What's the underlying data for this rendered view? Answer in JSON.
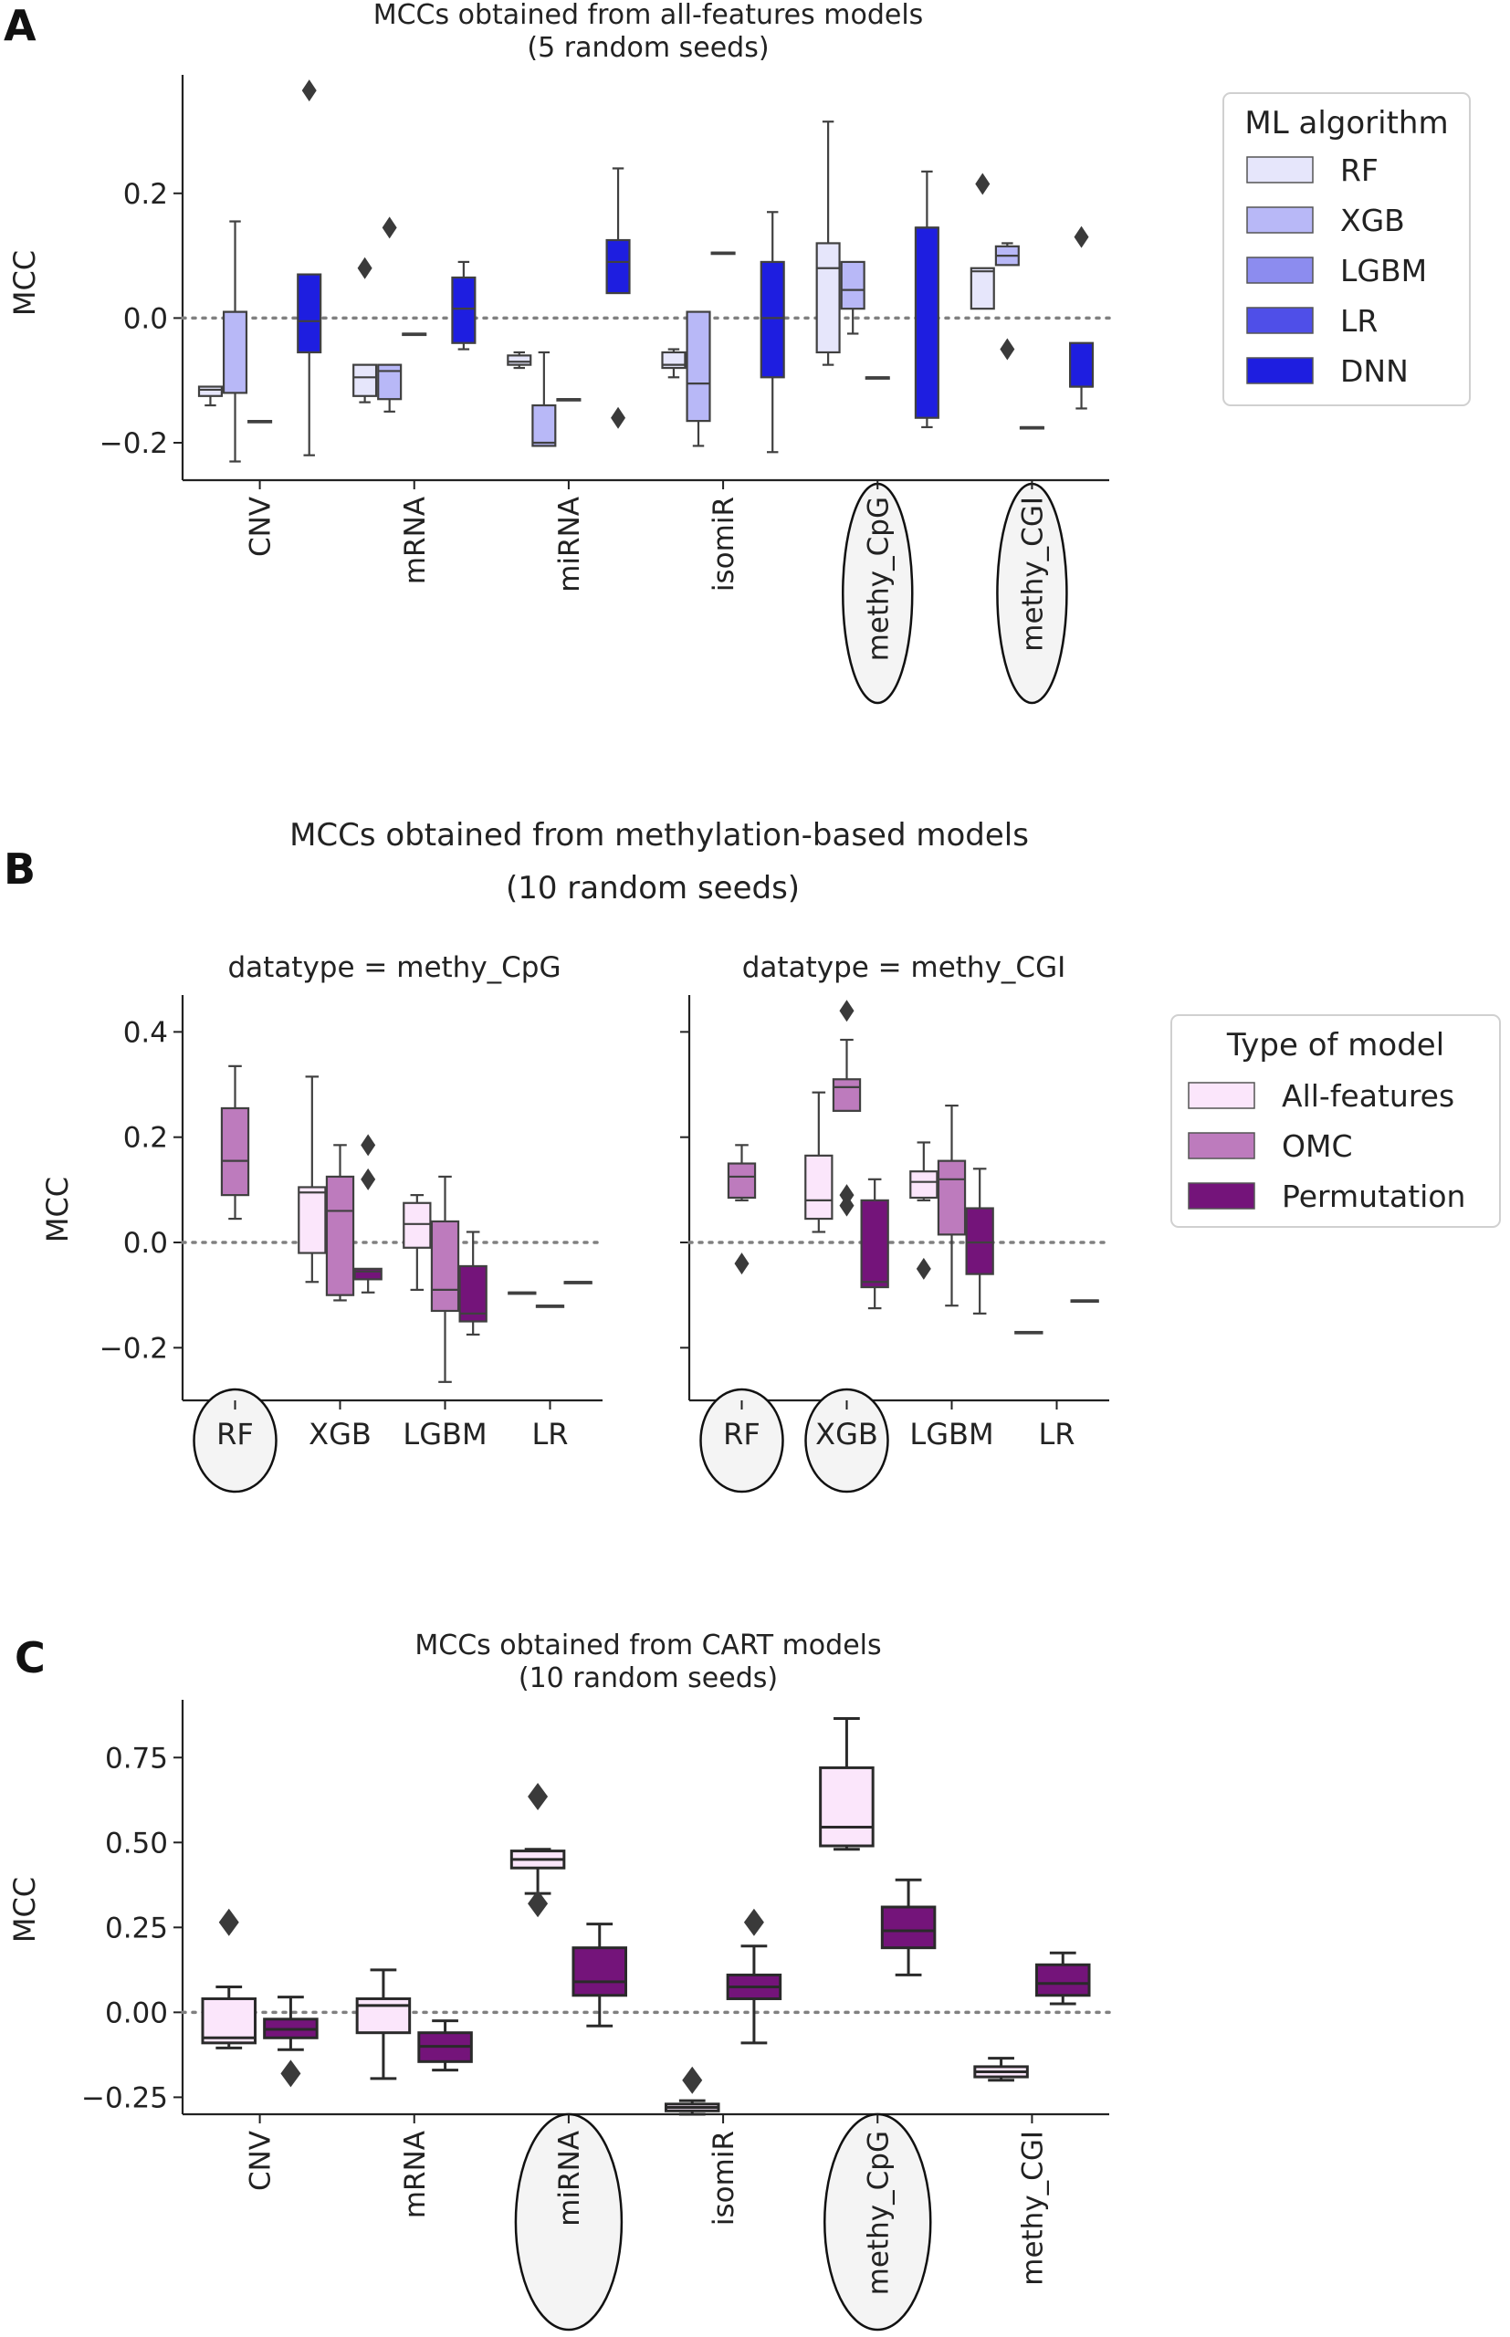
{
  "panel_labels": [
    "A",
    "B",
    "C"
  ],
  "colors": {
    "RF": "#e6e6fb",
    "XGB": "#b8b8f7",
    "LGBM": "#8c8cef",
    "LR": "#4f4fe8",
    "DNN": "#1e1ee0",
    "All-features": "#fbe6fb",
    "OMC": "#bd7bbd",
    "Permutation": "#74147a",
    "ref_line": "#808080",
    "whisker": "#404040"
  },
  "chart_data": [
    {
      "type": "box",
      "panel": "A",
      "title": "MCCs obtained from all-features models",
      "subtitle": "(5 random seeds)",
      "ylabel": "MCC",
      "xlabel": "",
      "ylim": [
        -0.26,
        0.39
      ],
      "yticks": [
        "−0.2",
        "0.0",
        "0.2"
      ],
      "ytick_values": [
        -0.2,
        0.0,
        0.2
      ],
      "categories": [
        "CNV",
        "mRNA",
        "miRNA",
        "isomiR",
        "methy_CpG",
        "methy_CGI"
      ],
      "highlighted_categories": [
        "methy_CpG",
        "methy_CGI"
      ],
      "reference_line": 0.0,
      "legend": {
        "title": "ML algorithm",
        "position": "right",
        "entries": [
          "RF",
          "XGB",
          "LGBM",
          "LR",
          "DNN"
        ]
      },
      "series": [
        {
          "name": "RF",
          "boxes": [
            {
              "category": "CNV",
              "min": -0.14,
              "q1": -0.125,
              "median": -0.115,
              "q3": -0.11,
              "max": -0.11,
              "outliers": []
            },
            {
              "category": "mRNA",
              "min": -0.135,
              "q1": -0.125,
              "median": -0.095,
              "q3": -0.075,
              "max": -0.075,
              "outliers": [
                0.08
              ]
            },
            {
              "category": "miRNA",
              "min": -0.08,
              "q1": -0.075,
              "median": -0.07,
              "q3": -0.06,
              "max": -0.055,
              "outliers": []
            },
            {
              "category": "isomiR",
              "min": -0.095,
              "q1": -0.08,
              "median": -0.075,
              "q3": -0.055,
              "max": -0.05,
              "outliers": []
            },
            {
              "category": "methy_CpG",
              "min": -0.075,
              "q1": -0.055,
              "median": 0.08,
              "q3": 0.12,
              "max": 0.315,
              "outliers": []
            },
            {
              "category": "methy_CGI",
              "min": 0.015,
              "q1": 0.015,
              "median": 0.075,
              "q3": 0.08,
              "max": 0.08,
              "outliers": [
                0.215
              ]
            }
          ]
        },
        {
          "name": "XGB",
          "boxes": [
            {
              "category": "CNV",
              "min": -0.23,
              "q1": -0.12,
              "median": 0.01,
              "q3": 0.01,
              "max": 0.155,
              "outliers": []
            },
            {
              "category": "mRNA",
              "min": -0.15,
              "q1": -0.13,
              "median": -0.085,
              "q3": -0.075,
              "max": -0.075,
              "outliers": [
                0.145
              ]
            },
            {
              "category": "miRNA",
              "min": -0.205,
              "q1": -0.205,
              "median": -0.2,
              "q3": -0.14,
              "max": -0.055,
              "outliers": []
            },
            {
              "category": "isomiR",
              "min": -0.205,
              "q1": -0.165,
              "median": -0.105,
              "q3": 0.01,
              "max": 0.01,
              "outliers": []
            },
            {
              "category": "methy_CpG",
              "min": -0.025,
              "q1": 0.015,
              "median": 0.045,
              "q3": 0.09,
              "max": 0.09,
              "outliers": []
            },
            {
              "category": "methy_CGI",
              "min": 0.085,
              "q1": 0.085,
              "median": 0.1,
              "q3": 0.115,
              "max": 0.12,
              "outliers": [
                -0.05
              ]
            }
          ]
        },
        {
          "name": "LGBM",
          "boxes": [
            {
              "category": "CNV",
              "min": -0.165,
              "q1": -0.165,
              "median": -0.165,
              "q3": -0.165,
              "max": -0.165,
              "outliers": []
            },
            {
              "category": "mRNA",
              "min": -0.025,
              "q1": -0.025,
              "median": -0.025,
              "q3": -0.025,
              "max": -0.025,
              "outliers": []
            },
            {
              "category": "miRNA",
              "min": -0.13,
              "q1": -0.13,
              "median": -0.13,
              "q3": -0.13,
              "max": -0.13,
              "outliers": []
            },
            {
              "category": "isomiR",
              "min": 0.105,
              "q1": 0.105,
              "median": 0.105,
              "q3": 0.105,
              "max": 0.105,
              "outliers": []
            },
            {
              "category": "methy_CpG",
              "min": -0.095,
              "q1": -0.095,
              "median": -0.095,
              "q3": -0.095,
              "max": -0.095,
              "outliers": []
            },
            {
              "category": "methy_CGI",
              "min": -0.175,
              "q1": -0.175,
              "median": -0.175,
              "q3": -0.175,
              "max": -0.175,
              "outliers": []
            }
          ]
        },
        {
          "name": "DNN",
          "boxes": [
            {
              "category": "CNV",
              "min": -0.22,
              "q1": -0.055,
              "median": -0.005,
              "q3": 0.07,
              "max": 0.07,
              "outliers": [
                0.365
              ]
            },
            {
              "category": "mRNA",
              "min": -0.05,
              "q1": -0.04,
              "median": 0.015,
              "q3": 0.065,
              "max": 0.09,
              "outliers": []
            },
            {
              "category": "miRNA",
              "min": 0.04,
              "q1": 0.04,
              "median": 0.09,
              "q3": 0.125,
              "max": 0.24,
              "outliers": [
                -0.16
              ]
            },
            {
              "category": "isomiR",
              "min": -0.215,
              "q1": -0.095,
              "median": 0.0,
              "q3": 0.09,
              "max": 0.17,
              "outliers": []
            },
            {
              "category": "methy_CpG",
              "min": -0.175,
              "q1": -0.16,
              "median": 0.145,
              "q3": 0.145,
              "max": 0.235,
              "outliers": []
            },
            {
              "category": "methy_CGI",
              "min": -0.145,
              "q1": -0.11,
              "median": -0.11,
              "q3": -0.04,
              "max": -0.04,
              "outliers": [
                0.13
              ]
            }
          ]
        }
      ]
    },
    {
      "type": "box",
      "panel": "B",
      "title": "MCCs obtained from methylation-based models",
      "subtitle": "(10 random seeds)",
      "ylabel": "MCC",
      "ylim": [
        -0.3,
        0.47
      ],
      "yticks": [
        "−0.2",
        "0.0",
        "0.2",
        "0.4"
      ],
      "ytick_values": [
        -0.2,
        0.0,
        0.2,
        0.4
      ],
      "reference_line": 0.0,
      "legend": {
        "title": "Type of model",
        "position": "right",
        "entries": [
          "All-features",
          "OMC",
          "Permutation"
        ]
      },
      "facets": [
        {
          "facet_title": "datatype = methy_CpG",
          "categories": [
            "RF",
            "XGB",
            "LGBM",
            "LR"
          ],
          "highlighted_categories": [
            "RF"
          ],
          "series": [
            {
              "name": "All-features",
              "boxes": [
                {
                  "category": "XGB",
                  "min": -0.075,
                  "q1": -0.02,
                  "median": 0.095,
                  "q3": 0.105,
                  "max": 0.315,
                  "outliers": []
                },
                {
                  "category": "LGBM",
                  "min": -0.09,
                  "q1": -0.01,
                  "median": 0.035,
                  "q3": 0.075,
                  "max": 0.09,
                  "outliers": []
                },
                {
                  "category": "LR",
                  "min": -0.095,
                  "q1": -0.095,
                  "median": -0.095,
                  "q3": -0.095,
                  "max": -0.095,
                  "outliers": []
                }
              ]
            },
            {
              "name": "OMC",
              "boxes": [
                {
                  "category": "RF",
                  "min": 0.045,
                  "q1": 0.09,
                  "median": 0.155,
                  "q3": 0.255,
                  "max": 0.335,
                  "outliers": []
                },
                {
                  "category": "XGB",
                  "min": -0.11,
                  "q1": -0.1,
                  "median": 0.06,
                  "q3": 0.125,
                  "max": 0.185,
                  "outliers": []
                },
                {
                  "category": "LGBM",
                  "min": -0.265,
                  "q1": -0.13,
                  "median": -0.09,
                  "q3": 0.04,
                  "max": 0.125,
                  "outliers": []
                },
                {
                  "category": "LR",
                  "min": -0.12,
                  "q1": -0.12,
                  "median": -0.12,
                  "q3": -0.12,
                  "max": -0.12,
                  "outliers": []
                }
              ]
            },
            {
              "name": "Permutation",
              "boxes": [
                {
                  "category": "XGB",
                  "min": -0.095,
                  "q1": -0.07,
                  "median": -0.055,
                  "q3": -0.05,
                  "max": -0.05,
                  "outliers": [
                    0.12,
                    0.185
                  ]
                },
                {
                  "category": "LGBM",
                  "min": -0.175,
                  "q1": -0.15,
                  "median": -0.135,
                  "q3": -0.045,
                  "max": 0.02,
                  "outliers": []
                },
                {
                  "category": "LR",
                  "min": -0.075,
                  "q1": -0.075,
                  "median": -0.075,
                  "q3": -0.075,
                  "max": -0.075,
                  "outliers": []
                }
              ]
            }
          ]
        },
        {
          "facet_title": "datatype = methy_CGI",
          "categories": [
            "RF",
            "XGB",
            "LGBM",
            "LR"
          ],
          "highlighted_categories": [
            "RF",
            "XGB"
          ],
          "series": [
            {
              "name": "All-features",
              "boxes": [
                {
                  "category": "XGB",
                  "min": 0.02,
                  "q1": 0.045,
                  "median": 0.08,
                  "q3": 0.165,
                  "max": 0.285,
                  "outliers": []
                },
                {
                  "category": "LGBM",
                  "min": 0.08,
                  "q1": 0.085,
                  "median": 0.115,
                  "q3": 0.135,
                  "max": 0.19,
                  "outliers": [
                    -0.05
                  ]
                },
                {
                  "category": "LR",
                  "min": -0.17,
                  "q1": -0.17,
                  "median": -0.17,
                  "q3": -0.17,
                  "max": -0.17,
                  "outliers": []
                }
              ]
            },
            {
              "name": "OMC",
              "boxes": [
                {
                  "category": "RF",
                  "min": 0.08,
                  "q1": 0.085,
                  "median": 0.125,
                  "q3": 0.15,
                  "max": 0.185,
                  "outliers": [
                    -0.04
                  ]
                },
                {
                  "category": "XGB",
                  "min": 0.25,
                  "q1": 0.25,
                  "median": 0.295,
                  "q3": 0.31,
                  "max": 0.385,
                  "outliers": [
                    0.07,
                    0.09,
                    0.44
                  ]
                },
                {
                  "category": "LGBM",
                  "min": -0.12,
                  "q1": 0.015,
                  "median": 0.12,
                  "q3": 0.155,
                  "max": 0.26,
                  "outliers": []
                }
              ]
            },
            {
              "name": "Permutation",
              "boxes": [
                {
                  "category": "XGB",
                  "min": -0.125,
                  "q1": -0.085,
                  "median": -0.075,
                  "q3": 0.08,
                  "max": 0.12,
                  "outliers": []
                },
                {
                  "category": "LGBM",
                  "min": -0.135,
                  "q1": -0.06,
                  "median": 0.0,
                  "q3": 0.065,
                  "max": 0.14,
                  "outliers": []
                },
                {
                  "category": "LR",
                  "min": -0.11,
                  "q1": -0.11,
                  "median": -0.11,
                  "q3": -0.11,
                  "max": -0.11,
                  "outliers": []
                }
              ]
            }
          ]
        }
      ]
    },
    {
      "type": "box",
      "panel": "C",
      "title": "MCCs obtained from CART models",
      "subtitle": "(10 random seeds)",
      "ylabel": "MCC",
      "ylim": [
        -0.3,
        0.92
      ],
      "yticks": [
        "−0.25",
        "0.00",
        "0.25",
        "0.50",
        "0.75"
      ],
      "ytick_values": [
        -0.25,
        0.0,
        0.25,
        0.5,
        0.75
      ],
      "categories": [
        "CNV",
        "mRNA",
        "miRNA",
        "isomiR",
        "methy_CpG",
        "methy_CGI"
      ],
      "highlighted_categories": [
        "miRNA",
        "methy_CpG"
      ],
      "reference_line": 0.0,
      "series": [
        {
          "name": "All-features",
          "boxes": [
            {
              "category": "CNV",
              "min": -0.105,
              "q1": -0.09,
              "median": -0.075,
              "q3": 0.04,
              "max": 0.075,
              "outliers": [
                0.265
              ]
            },
            {
              "category": "mRNA",
              "min": -0.195,
              "q1": -0.06,
              "median": 0.02,
              "q3": 0.04,
              "max": 0.125,
              "outliers": []
            },
            {
              "category": "miRNA",
              "min": 0.35,
              "q1": 0.425,
              "median": 0.45,
              "q3": 0.475,
              "max": 0.48,
              "outliers": [
                0.32,
                0.635
              ]
            },
            {
              "category": "isomiR",
              "min": -0.3,
              "q1": -0.29,
              "median": -0.28,
              "q3": -0.27,
              "max": -0.26,
              "outliers": [
                -0.2
              ]
            },
            {
              "category": "methy_CpG",
              "min": 0.48,
              "q1": 0.49,
              "median": 0.545,
              "q3": 0.72,
              "max": 0.865,
              "outliers": []
            },
            {
              "category": "methy_CGI",
              "min": -0.2,
              "q1": -0.19,
              "median": -0.175,
              "q3": -0.16,
              "max": -0.135,
              "outliers": []
            }
          ]
        },
        {
          "name": "Permutation",
          "boxes": [
            {
              "category": "CNV",
              "min": -0.11,
              "q1": -0.075,
              "median": -0.05,
              "q3": -0.02,
              "max": 0.045,
              "outliers": [
                -0.18
              ]
            },
            {
              "category": "mRNA",
              "min": -0.17,
              "q1": -0.145,
              "median": -0.1,
              "q3": -0.06,
              "max": -0.025,
              "outliers": []
            },
            {
              "category": "miRNA",
              "min": -0.04,
              "q1": 0.05,
              "median": 0.09,
              "q3": 0.19,
              "max": 0.26,
              "outliers": []
            },
            {
              "category": "isomiR",
              "min": -0.09,
              "q1": 0.04,
              "median": 0.075,
              "q3": 0.11,
              "max": 0.195,
              "outliers": [
                0.265
              ]
            },
            {
              "category": "methy_CpG",
              "min": 0.11,
              "q1": 0.19,
              "median": 0.24,
              "q3": 0.31,
              "max": 0.39,
              "outliers": []
            },
            {
              "category": "methy_CGI",
              "min": 0.025,
              "q1": 0.05,
              "median": 0.085,
              "q3": 0.14,
              "max": 0.175,
              "outliers": []
            }
          ]
        }
      ]
    }
  ]
}
